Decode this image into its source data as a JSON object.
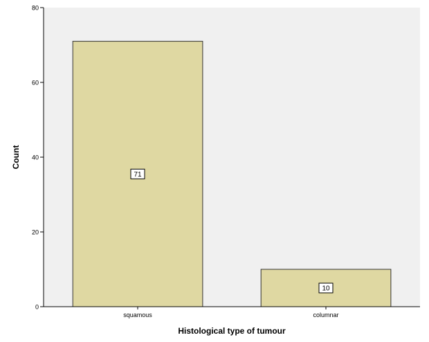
{
  "chart_data": {
    "type": "bar",
    "categories": [
      "squamous",
      "columnar"
    ],
    "values": [
      71,
      10
    ],
    "data_labels": [
      "71",
      "10"
    ],
    "xlabel": "Histological type of tumour",
    "ylabel": "Count",
    "ylim": [
      0,
      80
    ],
    "yticks": [
      "0",
      "20",
      "40",
      "60",
      "80"
    ],
    "grid": false,
    "legend": "none",
    "colors": {
      "plot_background": "#f0f0f0",
      "bar_fill": "#dfd8a2",
      "bar_stroke": "#333333",
      "label_box_fill": "#ffffff"
    }
  }
}
